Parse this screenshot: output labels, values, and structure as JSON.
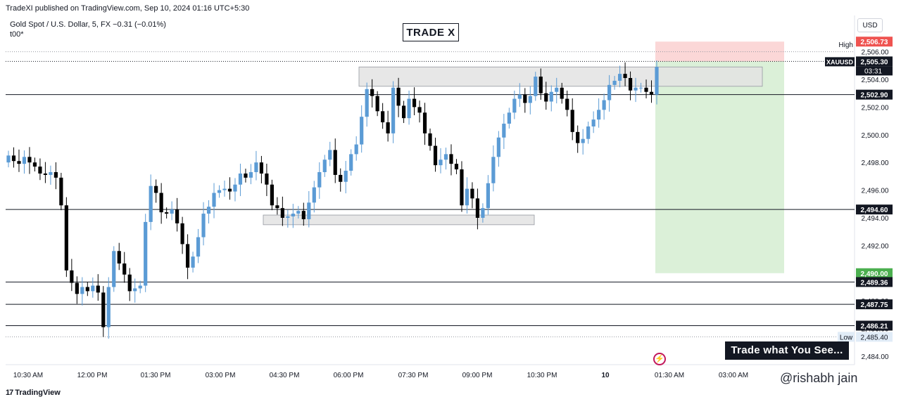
{
  "header": {
    "publish_line": "TradeXI published on TradingView.com, Sep 10, 2024 01:16 UTC+5:30",
    "symbol_line": "Gold Spot / U.S. Dollar, 5, FX  −0.31 (−0.01%)",
    "sub_line": "t00*",
    "currency": "USD"
  },
  "title": "TRADE X",
  "banner": "Trade what You See...",
  "watermark": "@rishabh jain",
  "footer_logo": "TradingView",
  "colors": {
    "up": "#5b9bd5",
    "down": "#000000",
    "target_zone": "#dbf0d8",
    "stop_zone": "#fbd7d7",
    "zone_box": "#e3e3e3",
    "green_label": "#4caf50",
    "red_label": "#ef5350"
  },
  "chart_data": {
    "type": "candlestick",
    "interval": "5",
    "ylim": [
      2483.6,
      2507.0
    ],
    "x_ticks": [
      "10:30 AM",
      "12:00 PM",
      "01:30 PM",
      "03:00 PM",
      "04:30 PM",
      "06:00 PM",
      "07:30 PM",
      "09:00 PM",
      "10:30 PM",
      "10",
      "01:30 AM",
      "03:00 AM"
    ],
    "y_ticks": [
      2484.0,
      2486.0,
      2488.0,
      2490.0,
      2492.0,
      2494.0,
      2496.0,
      2498.0,
      2500.0,
      2502.0,
      2504.0,
      2506.0
    ],
    "closes": [
      2498.5,
      2498.1,
      2497.9,
      2498.4,
      2498.0,
      2497.7,
      2497.2,
      2497.1,
      2497.3,
      2496.9,
      2494.9,
      2490.2,
      2489.3,
      2488.5,
      2489.0,
      2488.7,
      2489.1,
      2488.6,
      2486.1,
      2489.0,
      2491.6,
      2490.7,
      2489.9,
      2488.7,
      2488.9,
      2489.1,
      2493.7,
      2496.3,
      2495.8,
      2494.4,
      2494.3,
      2494.6,
      2493.6,
      2492.1,
      2490.4,
      2491.2,
      2492.6,
      2494.3,
      2494.8,
      2495.8,
      2496.0,
      2496.1,
      2495.9,
      2496.4,
      2497.2,
      2496.9,
      2497.3,
      2498.0,
      2497.2,
      2496.4,
      2494.9,
      2494.7,
      2494.0,
      2494.1,
      2494.3,
      2494.5,
      2493.9,
      2495.1,
      2496.2,
      2497.3,
      2498.2,
      2498.9,
      2497.1,
      2496.6,
      2497.4,
      2498.6,
      2499.3,
      2501.3,
      2503.3,
      2502.8,
      2501.7,
      2500.9,
      2500.1,
      2503.4,
      2502.1,
      2501.2,
      2502.6,
      2502.0,
      2501.6,
      2500.1,
      2499.2,
      2497.8,
      2498.2,
      2498.6,
      2497.9,
      2497.5,
      2494.9,
      2496.1,
      2495.4,
      2494.0,
      2494.7,
      2496.5,
      2498.4,
      2499.8,
      2500.8,
      2501.6,
      2502.6,
      2502.9,
      2502.3,
      2502.8,
      2504.2,
      2503.0,
      2502.4,
      2503.1,
      2503.4,
      2502.6,
      2501.8,
      2500.2,
      2499.4,
      2499.7,
      2500.6,
      2501.1,
      2501.8,
      2502.5,
      2503.6,
      2503.9,
      2504.4,
      2504.1,
      2503.2,
      2503.4,
      2503.4,
      2503.1,
      2502.9,
      2504.9
    ],
    "horizontal_levels": [
      2502.9,
      2494.6,
      2489.36,
      2487.75,
      2486.21
    ],
    "zones": [
      {
        "name": "upper-supply-zone",
        "from": 2503.5,
        "to": 2504.9
      },
      {
        "name": "lower-demand-zone",
        "from": 2493.5,
        "to": 2494.2
      }
    ],
    "position": {
      "entry": 2505.3,
      "stop": 2506.73,
      "target": 2490.0
    },
    "price_labels": [
      {
        "name": "stop-price-label",
        "text": "2,506.73",
        "value": 2506.73,
        "style": "red"
      },
      {
        "name": "current-price-label",
        "text": "2,505.30",
        "value": 2505.3,
        "style": "dark"
      },
      {
        "name": "level-label-2502",
        "text": "2,502.90",
        "value": 2502.9,
        "style": "dark"
      },
      {
        "name": "level-label-2494",
        "text": "2,494.60",
        "value": 2494.6,
        "style": "dark"
      },
      {
        "name": "target-price-label",
        "text": "2,490.00",
        "value": 2490.0,
        "style": "green"
      },
      {
        "name": "level-label-2489",
        "text": "2,489.36",
        "value": 2489.36,
        "style": "dark"
      },
      {
        "name": "level-label-2487",
        "text": "2,487.75",
        "value": 2487.75,
        "style": "dark"
      },
      {
        "name": "level-label-2486",
        "text": "2,486.21",
        "value": 2486.21,
        "style": "dark"
      }
    ],
    "high_label": "High",
    "low_label": "Low",
    "low_value": "2,485.40",
    "symbol_tag": "XAUUSD",
    "countdown": "03:31"
  }
}
